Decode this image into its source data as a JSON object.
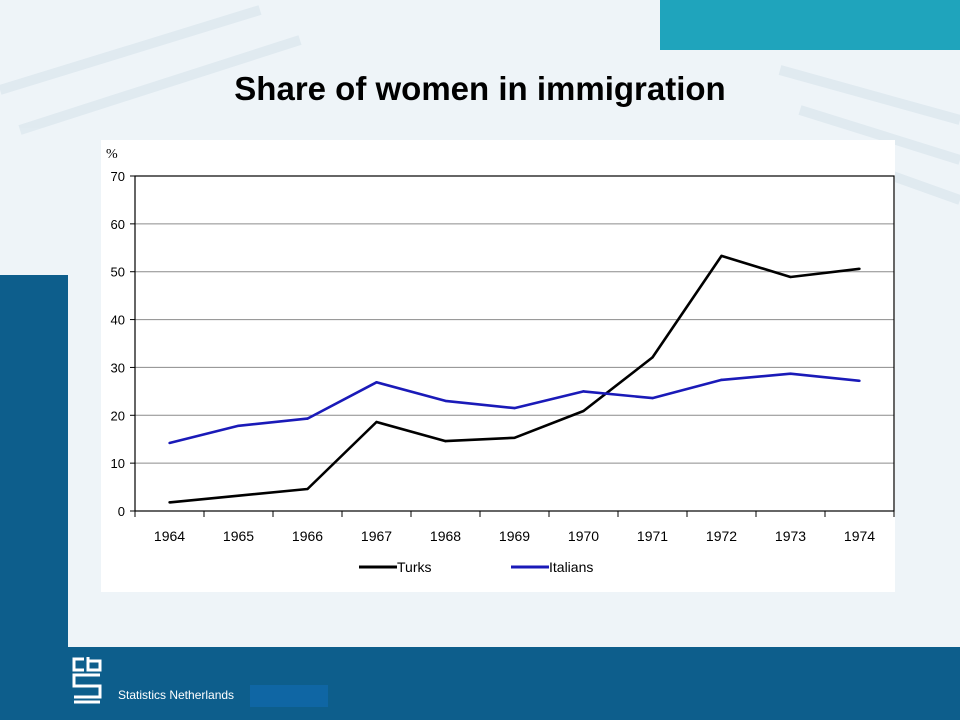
{
  "slide": {
    "title": "Share of women in immigration",
    "footer": "Statistics Netherlands"
  },
  "colors": {
    "accent": "#1fa4bc",
    "brand_blue": "#0d5e8c",
    "turks": "#000000",
    "italians": "#1a1ab8"
  },
  "chart_data": {
    "type": "line",
    "unit_label": "%",
    "categories": [
      "1964",
      "1965",
      "1966",
      "1967",
      "1968",
      "1969",
      "1970",
      "1971",
      "1972",
      "1973",
      "1974"
    ],
    "ylim": [
      0,
      70
    ],
    "yticks": [
      0,
      10,
      20,
      30,
      40,
      50,
      60,
      70
    ],
    "grid": true,
    "legend_position": "bottom",
    "series": [
      {
        "name": "Turks",
        "color": "#000000",
        "values": [
          1.8,
          3.2,
          4.6,
          18.6,
          14.6,
          15.3,
          20.9,
          32.1,
          53.3,
          48.9,
          50.6
        ]
      },
      {
        "name": "Italians",
        "color": "#1a1ab8",
        "values": [
          14.2,
          17.8,
          19.3,
          26.9,
          23.0,
          21.5,
          25.0,
          23.6,
          27.4,
          28.7,
          27.2
        ]
      }
    ]
  }
}
